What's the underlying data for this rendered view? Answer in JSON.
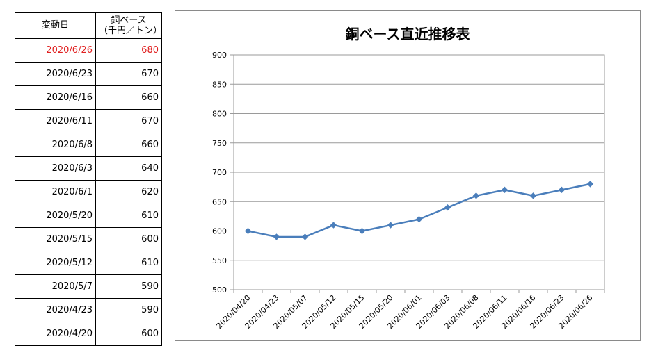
{
  "table": {
    "header_date": "変動日",
    "header_value_line1": "銅ベース",
    "header_value_line2": "（千円／トン）",
    "rows": [
      {
        "date": "2020/6/26",
        "value": "680",
        "highlight": true
      },
      {
        "date": "2020/6/23",
        "value": "670"
      },
      {
        "date": "2020/6/16",
        "value": "660"
      },
      {
        "date": "2020/6/11",
        "value": "670"
      },
      {
        "date": "2020/6/8",
        "value": "660"
      },
      {
        "date": "2020/6/3",
        "value": "640"
      },
      {
        "date": "2020/6/1",
        "value": "620"
      },
      {
        "date": "2020/5/20",
        "value": "610"
      },
      {
        "date": "2020/5/15",
        "value": "600"
      },
      {
        "date": "2020/5/12",
        "value": "610"
      },
      {
        "date": "2020/5/7",
        "value": "590"
      },
      {
        "date": "2020/4/23",
        "value": "590"
      },
      {
        "date": "2020/4/20",
        "value": "600"
      }
    ]
  },
  "chart_data": {
    "type": "line",
    "title": "銅ベース直近推移表",
    "categories": [
      "2020/04/20",
      "2020/04/23",
      "2020/05/07",
      "2020/05/12",
      "2020/05/15",
      "2020/05/20",
      "2020/06/01",
      "2020/06/03",
      "2020/06/08",
      "2020/06/11",
      "2020/06/16",
      "2020/06/23",
      "2020/06/26"
    ],
    "series": [
      {
        "values": [
          600,
          590,
          590,
          610,
          600,
          610,
          620,
          640,
          660,
          670,
          660,
          670,
          680
        ]
      }
    ],
    "ylim": [
      500,
      900
    ],
    "yticks": [
      500,
      550,
      600,
      650,
      700,
      750,
      800,
      850,
      900
    ],
    "grid": true,
    "legend": "none",
    "colors": {
      "line": "#4a7ebb",
      "grid": "#9a9a9a",
      "highlight_text": "#e02020"
    }
  }
}
